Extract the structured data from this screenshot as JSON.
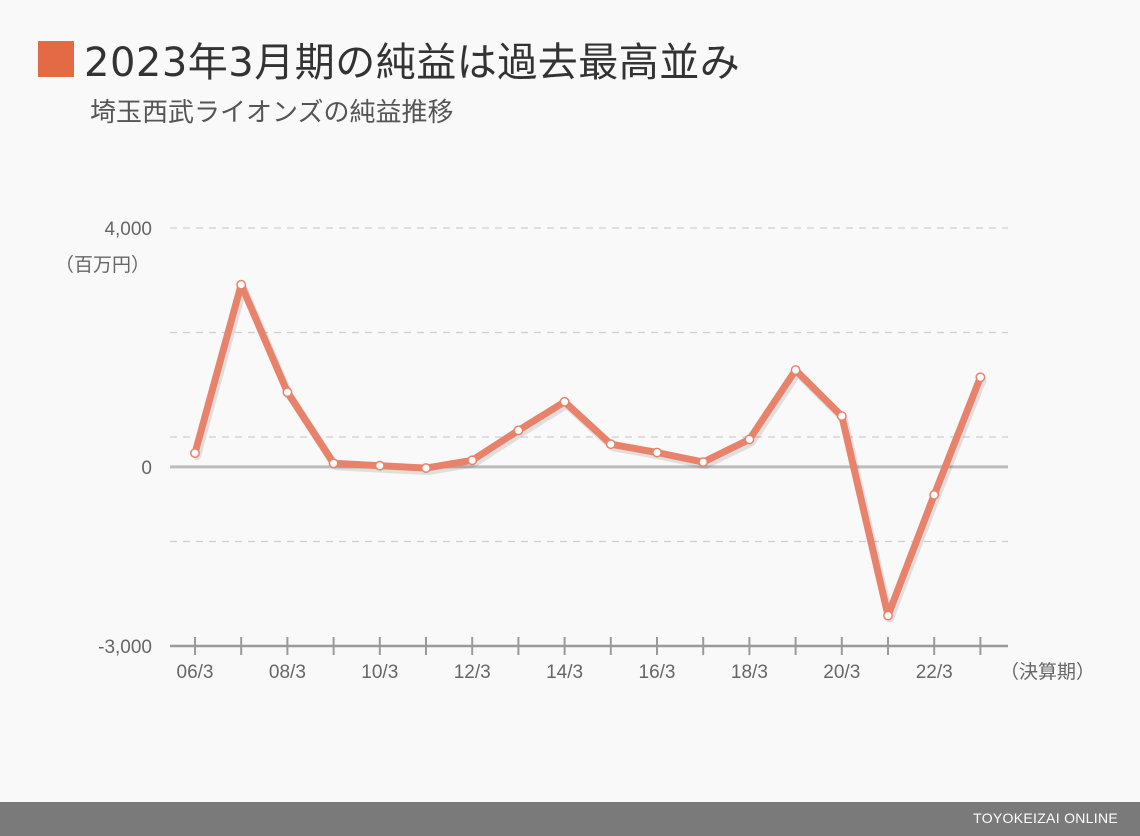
{
  "header": {
    "title": "2023年3月期の純益は過去最高並み",
    "subtitle": "埼玉西武ライオンズの純益推移",
    "accent_color": "#e36a45"
  },
  "footer": {
    "brand": "TOYOKEIZAI ONLINE"
  },
  "chart_data": {
    "type": "line",
    "title": "2023年3月期の純益は過去最高並み",
    "subtitle": "埼玉西武ライオンズの純益推移",
    "unit_label": "（百万円）",
    "x_axis_suffix": "（決算期）",
    "y_ticks_labeled": [
      {
        "value": 4000,
        "label": "4,000"
      },
      {
        "value": 0,
        "label": "0"
      },
      {
        "value": -3000,
        "label": "-3,000"
      }
    ],
    "y_gridlines": [
      4000,
      2250,
      500,
      -1250
    ],
    "ylim": [
      -3000,
      4000
    ],
    "x": [
      "06/3",
      "07/3",
      "08/3",
      "09/3",
      "10/3",
      "11/3",
      "12/3",
      "13/3",
      "14/3",
      "15/3",
      "16/3",
      "17/3",
      "18/3",
      "19/3",
      "20/3",
      "21/3",
      "22/3",
      "23/3"
    ],
    "x_tick_labels": [
      "06/3",
      "08/3",
      "10/3",
      "12/3",
      "14/3",
      "16/3",
      "18/3",
      "20/3",
      "22/3"
    ],
    "series": [
      {
        "values": [
          230,
          3050,
          1250,
          60,
          20,
          -20,
          110,
          610,
          1090,
          380,
          240,
          80,
          460,
          1620,
          850,
          -2490,
          -470,
          1500
        ]
      }
    ],
    "line_color": "#e8826a",
    "grid": true,
    "legend": "none"
  }
}
